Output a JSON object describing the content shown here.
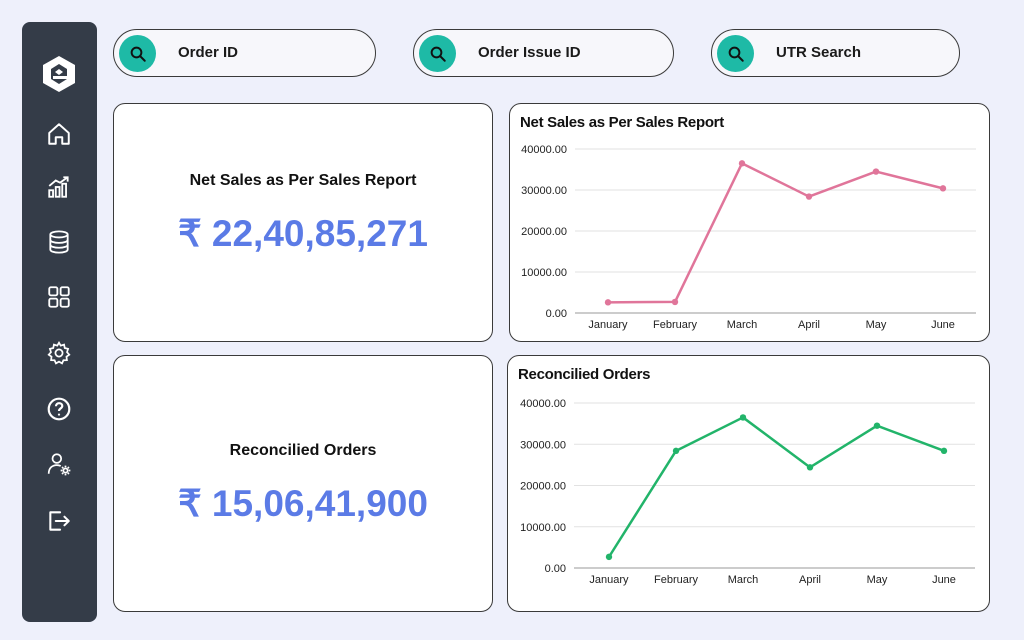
{
  "search": [
    {
      "label": "Order ID"
    },
    {
      "label": "Order Issue ID"
    },
    {
      "label": "UTR Search"
    }
  ],
  "sidebar": {
    "items": [
      {
        "icon": "home-icon"
      },
      {
        "icon": "analytics-icon"
      },
      {
        "icon": "database-icon"
      },
      {
        "icon": "grid-icon"
      },
      {
        "icon": "gear-icon"
      },
      {
        "icon": "help-icon"
      },
      {
        "icon": "user-settings-icon"
      },
      {
        "icon": "logout-icon"
      }
    ]
  },
  "cards": {
    "net_sales": {
      "title": "Net Sales as Per Sales Report",
      "value": "₹ 22,40,85,271"
    },
    "reconciled": {
      "title": "Reconcilied Orders",
      "value": "₹ 15,06,41,900"
    }
  },
  "colors": {
    "sidebar": "#343c48",
    "accent": "#1ebaa6",
    "value": "#5b7be6",
    "line1": "#e0759a",
    "line2": "#22b46a"
  },
  "chart_data": [
    {
      "type": "line",
      "title": "Net Sales as Per Sales Report",
      "categories": [
        "January",
        "February",
        "March",
        "April",
        "May",
        "June"
      ],
      "series": [
        {
          "values": [
            2600,
            2700,
            36500,
            28400,
            34500,
            30400
          ]
        }
      ],
      "yticks": [
        "0.00",
        "10000.00",
        "20000.00",
        "30000.00",
        "40000.00"
      ],
      "ylim": [
        0,
        40000
      ],
      "color": "#e0759a",
      "grid": true
    },
    {
      "type": "line",
      "title": "Reconcilied Orders",
      "categories": [
        "January",
        "February",
        "March",
        "April",
        "May",
        "June"
      ],
      "series": [
        {
          "values": [
            2700,
            28400,
            36500,
            24400,
            34500,
            28400
          ]
        }
      ],
      "yticks": [
        "0.00",
        "10000.00",
        "20000.00",
        "30000.00",
        "40000.00"
      ],
      "ylim": [
        0,
        40000
      ],
      "color": "#22b46a",
      "grid": true
    }
  ]
}
